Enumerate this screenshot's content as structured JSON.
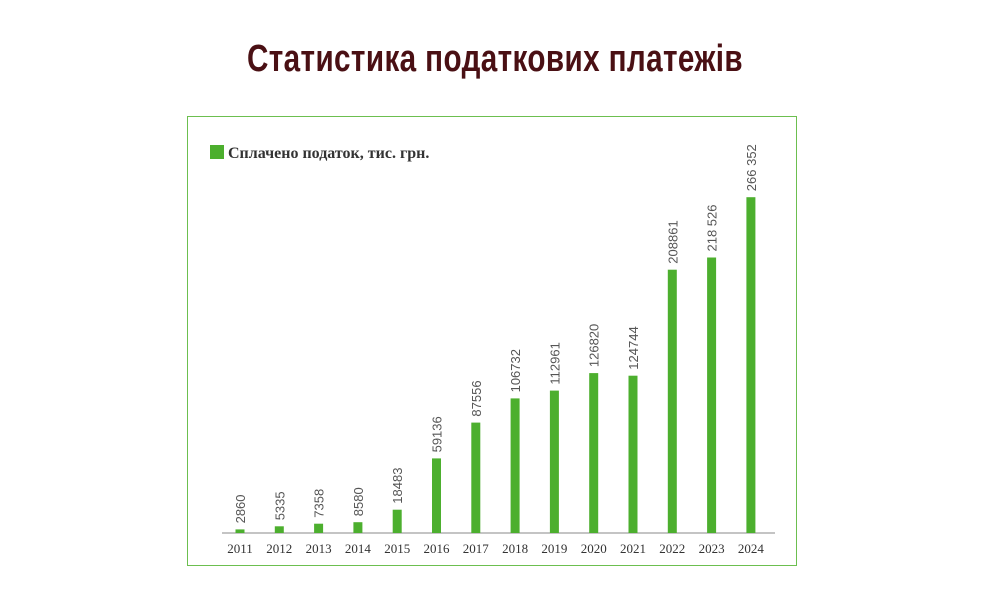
{
  "page": {
    "title": "Статистика податкових платежів"
  },
  "chart_data": {
    "type": "bar",
    "categories": [
      "2011",
      "2012",
      "2013",
      "2014",
      "2015",
      "2016",
      "2017",
      "2018",
      "2019",
      "2020",
      "2021",
      "2022",
      "2023",
      "2024"
    ],
    "series": [
      {
        "name": "Сплачено податок, тис. грн.",
        "values": [
          2860,
          5335,
          7358,
          8580,
          18483,
          59136,
          87556,
          106732,
          112961,
          126820,
          124744,
          208861,
          218526,
          266352
        ]
      }
    ],
    "data_labels": [
      "2860",
      "5335",
      "7358",
      "8580",
      "18483",
      "59136",
      "87556",
      "106732",
      "112961",
      "126820",
      "124744",
      "208861",
      "218 526",
      "266 352"
    ],
    "bar_color": "#4caf2e",
    "axis_color": "#8a8a8a",
    "label_color": "#555555",
    "legend_placement": "top-left",
    "ylim": [
      0,
      280000
    ],
    "grid": false,
    "title": "",
    "xlabel": "",
    "ylabel": ""
  }
}
